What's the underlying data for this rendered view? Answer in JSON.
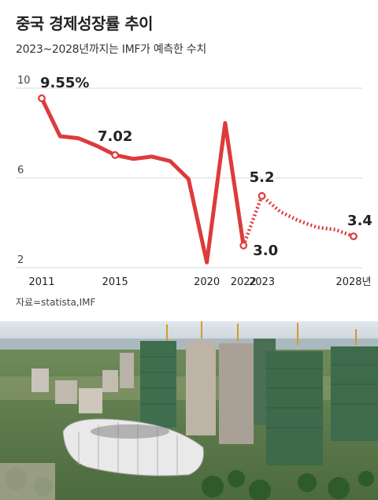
{
  "title": "중국 경제성장률 추이",
  "subtitle": "2023~2028년까지는 IMF가 예측한 수치",
  "source": "자료=statista,IMF",
  "colors": {
    "line": "#dd3b3b",
    "text": "#222222",
    "grid": "#d8d8d8"
  },
  "chart_data": {
    "type": "line",
    "title": "중국 경제성장률 추이",
    "subtitle": "2023~2028년까지는 IMF가 예측한 수치",
    "ylim": [
      2,
      10
    ],
    "yticks": [
      2,
      6,
      10
    ],
    "xticks": [
      "2011",
      "2015",
      "2020",
      "2022",
      "2023",
      "2028년"
    ],
    "xtick_years": [
      2011,
      2015,
      2020,
      2022,
      2023,
      2028
    ],
    "grid": "horizontal",
    "series": [
      {
        "style": "solid",
        "x": [
          2011,
          2012,
          2013,
          2014,
          2015,
          2016,
          2017,
          2018,
          2019,
          2020,
          2021,
          2022
        ],
        "values": [
          9.55,
          7.86,
          7.77,
          7.43,
          7.02,
          6.85,
          6.95,
          6.75,
          5.95,
          2.24,
          8.45,
          2.99
        ]
      },
      {
        "style": "dotted",
        "x": [
          2022,
          2023,
          2024,
          2025,
          2026,
          2027,
          2028
        ],
        "values": [
          2.99,
          5.2,
          4.5,
          4.1,
          3.8,
          3.7,
          3.4
        ]
      }
    ],
    "data_labels": [
      {
        "x": 2011,
        "value": 9.55,
        "text": "9.55%"
      },
      {
        "x": 2015,
        "value": 7.02,
        "text": "7.02"
      },
      {
        "x": 2023,
        "value": 5.2,
        "text": "5.2"
      },
      {
        "x": 2022,
        "value": 2.99,
        "text": "3.0"
      },
      {
        "x": 2028,
        "value": 3.4,
        "text": "3.4"
      }
    ]
  }
}
